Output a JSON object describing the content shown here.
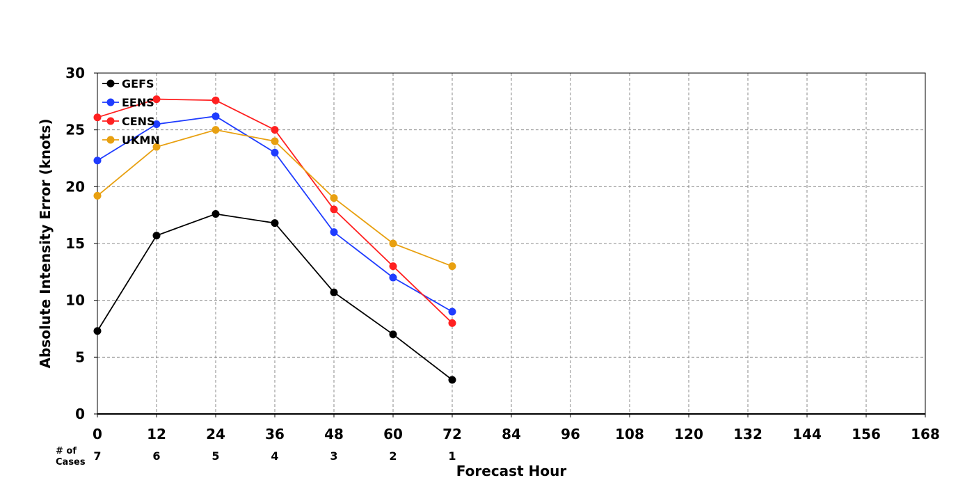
{
  "chart_data": {
    "type": "line",
    "title": "",
    "xlabel": "Forecast Hour",
    "ylabel": "Absolute Intensity Error (knots)",
    "xlim": [
      0,
      168
    ],
    "ylim": [
      0,
      30
    ],
    "xticks": [
      0,
      12,
      24,
      36,
      48,
      60,
      72,
      84,
      96,
      108,
      120,
      132,
      144,
      156,
      168
    ],
    "yticks": [
      0,
      5,
      10,
      15,
      20,
      25,
      30
    ],
    "grid": true,
    "legend_position": "top-left",
    "x": [
      0,
      12,
      24,
      36,
      48,
      60,
      72
    ],
    "series": [
      {
        "name": "GEFS",
        "color": "#000000",
        "values": [
          7.3,
          15.7,
          17.6,
          16.8,
          10.7,
          7.0,
          3.0
        ]
      },
      {
        "name": "EENS",
        "color": "#1f3cff",
        "values": [
          22.3,
          25.5,
          26.2,
          23.0,
          16.0,
          12.0,
          9.0
        ]
      },
      {
        "name": "CENS",
        "color": "#ff2020",
        "values": [
          26.1,
          27.7,
          27.6,
          25.0,
          18.0,
          13.0,
          8.0
        ]
      },
      {
        "name": "UKMN",
        "color": "#e8a010",
        "values": [
          19.2,
          23.5,
          25.0,
          24.0,
          19.0,
          15.0,
          13.0
        ]
      }
    ],
    "cases": {
      "label_line1": "# of",
      "label_line2": "Cases",
      "x": [
        0,
        12,
        24,
        36,
        48,
        60,
        72
      ],
      "counts": [
        "7",
        "6",
        "5",
        "4",
        "3",
        "2",
        "1"
      ]
    }
  }
}
